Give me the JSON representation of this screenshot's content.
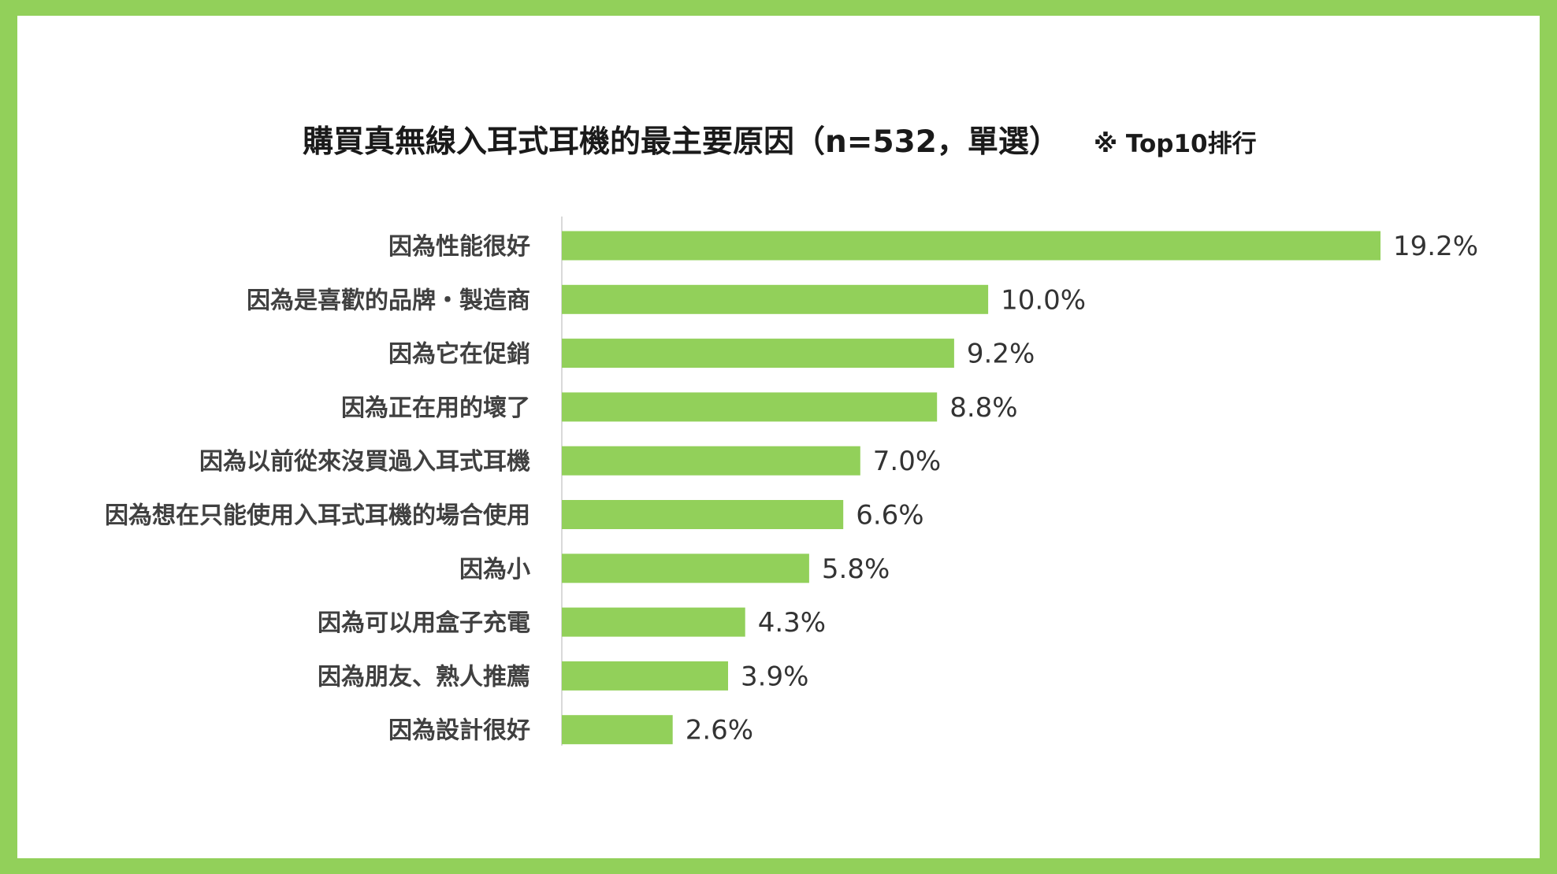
{
  "colors": {
    "frame": "#92d05a",
    "bar": "#92d05a",
    "axis": "#d9d9d9"
  },
  "chart_data": {
    "type": "bar",
    "orientation": "horizontal",
    "title": "購買真無線入耳式耳機的最主要原因（n=532，單選）",
    "subtitle": "※ Top10排行",
    "categories": [
      "因為性能很好",
      "因為是喜歡的品牌・製造商",
      "因為它在促銷",
      "因為正在用的壞了",
      "因為以前從來沒買過入耳式耳機",
      "因為想在只能使用入耳式耳機的場合使用",
      "因為小",
      "因為可以用盒子充電",
      "因為朋友、熟人推薦",
      "因為設計很好"
    ],
    "values": [
      19.2,
      10.0,
      9.2,
      8.8,
      7.0,
      6.6,
      5.8,
      4.3,
      3.9,
      2.6
    ],
    "value_labels": [
      "19.2%",
      "10.0%",
      "9.2%",
      "8.8%",
      "7.0%",
      "6.6%",
      "5.8%",
      "4.3%",
      "3.9%",
      "2.6%"
    ],
    "xlim": [
      0,
      20
    ],
    "grid": false,
    "legend": "none"
  }
}
